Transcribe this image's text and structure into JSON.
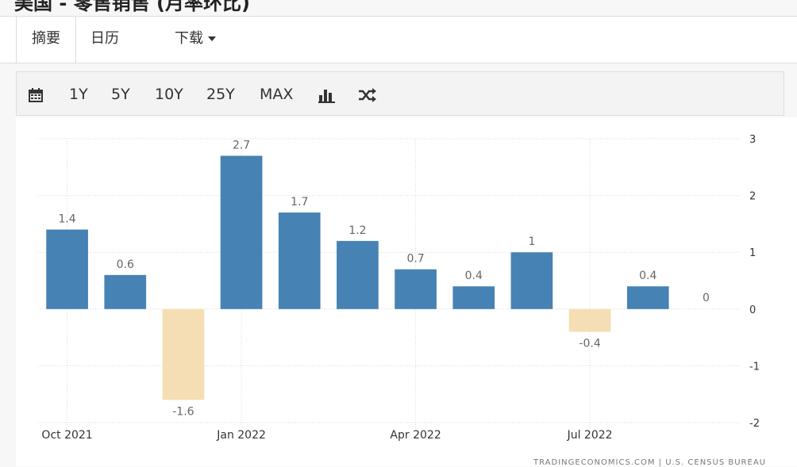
{
  "page": {
    "title": "美国 - 零售销售 (月率环比)",
    "source": "TRADINGECONOMICS.COM | U.S. CENSUS BUREAU"
  },
  "tabs": [
    {
      "label": "摘要"
    },
    {
      "label": "日历"
    },
    {
      "label": "下载"
    }
  ],
  "toolbar": {
    "ranges": [
      "1Y",
      "5Y",
      "10Y",
      "25Y",
      "MAX"
    ],
    "icons": [
      "calendar-icon",
      "bar-chart-icon",
      "shuffle-icon"
    ]
  },
  "colors": {
    "positive": "#4682b4",
    "negative": "#f5deb3",
    "grid": "#d9d9d9",
    "label": "#666666"
  },
  "chart_data": {
    "type": "bar",
    "categories": [
      "2021-10",
      "2021-11",
      "2021-12",
      "2022-01",
      "2022-02",
      "2022-03",
      "2022-04",
      "2022-05",
      "2022-06",
      "2022-07",
      "2022-08",
      "2022-09"
    ],
    "values": [
      1.4,
      0.6,
      -1.6,
      2.7,
      1.7,
      1.2,
      0.7,
      0.4,
      1,
      -0.4,
      0.4,
      0
    ],
    "value_labels": [
      "1.4",
      "0.6",
      "-1.6",
      "2.7",
      "1.7",
      "1.2",
      "0.7",
      "0.4",
      "1",
      "-0.4",
      "0.4",
      "0"
    ],
    "x_ticks": [
      {
        "label": "Oct 2021",
        "category": "2021-10"
      },
      {
        "label": "Jan 2022",
        "category": "2022-01"
      },
      {
        "label": "Apr 2022",
        "category": "2022-04"
      },
      {
        "label": "Jul 2022",
        "category": "2022-07"
      }
    ],
    "y_ticks": [
      3,
      2,
      1,
      0,
      -1,
      -2
    ],
    "ylim": [
      -2,
      3
    ],
    "y_axis_side": "right",
    "grid": true,
    "legend": "none"
  }
}
